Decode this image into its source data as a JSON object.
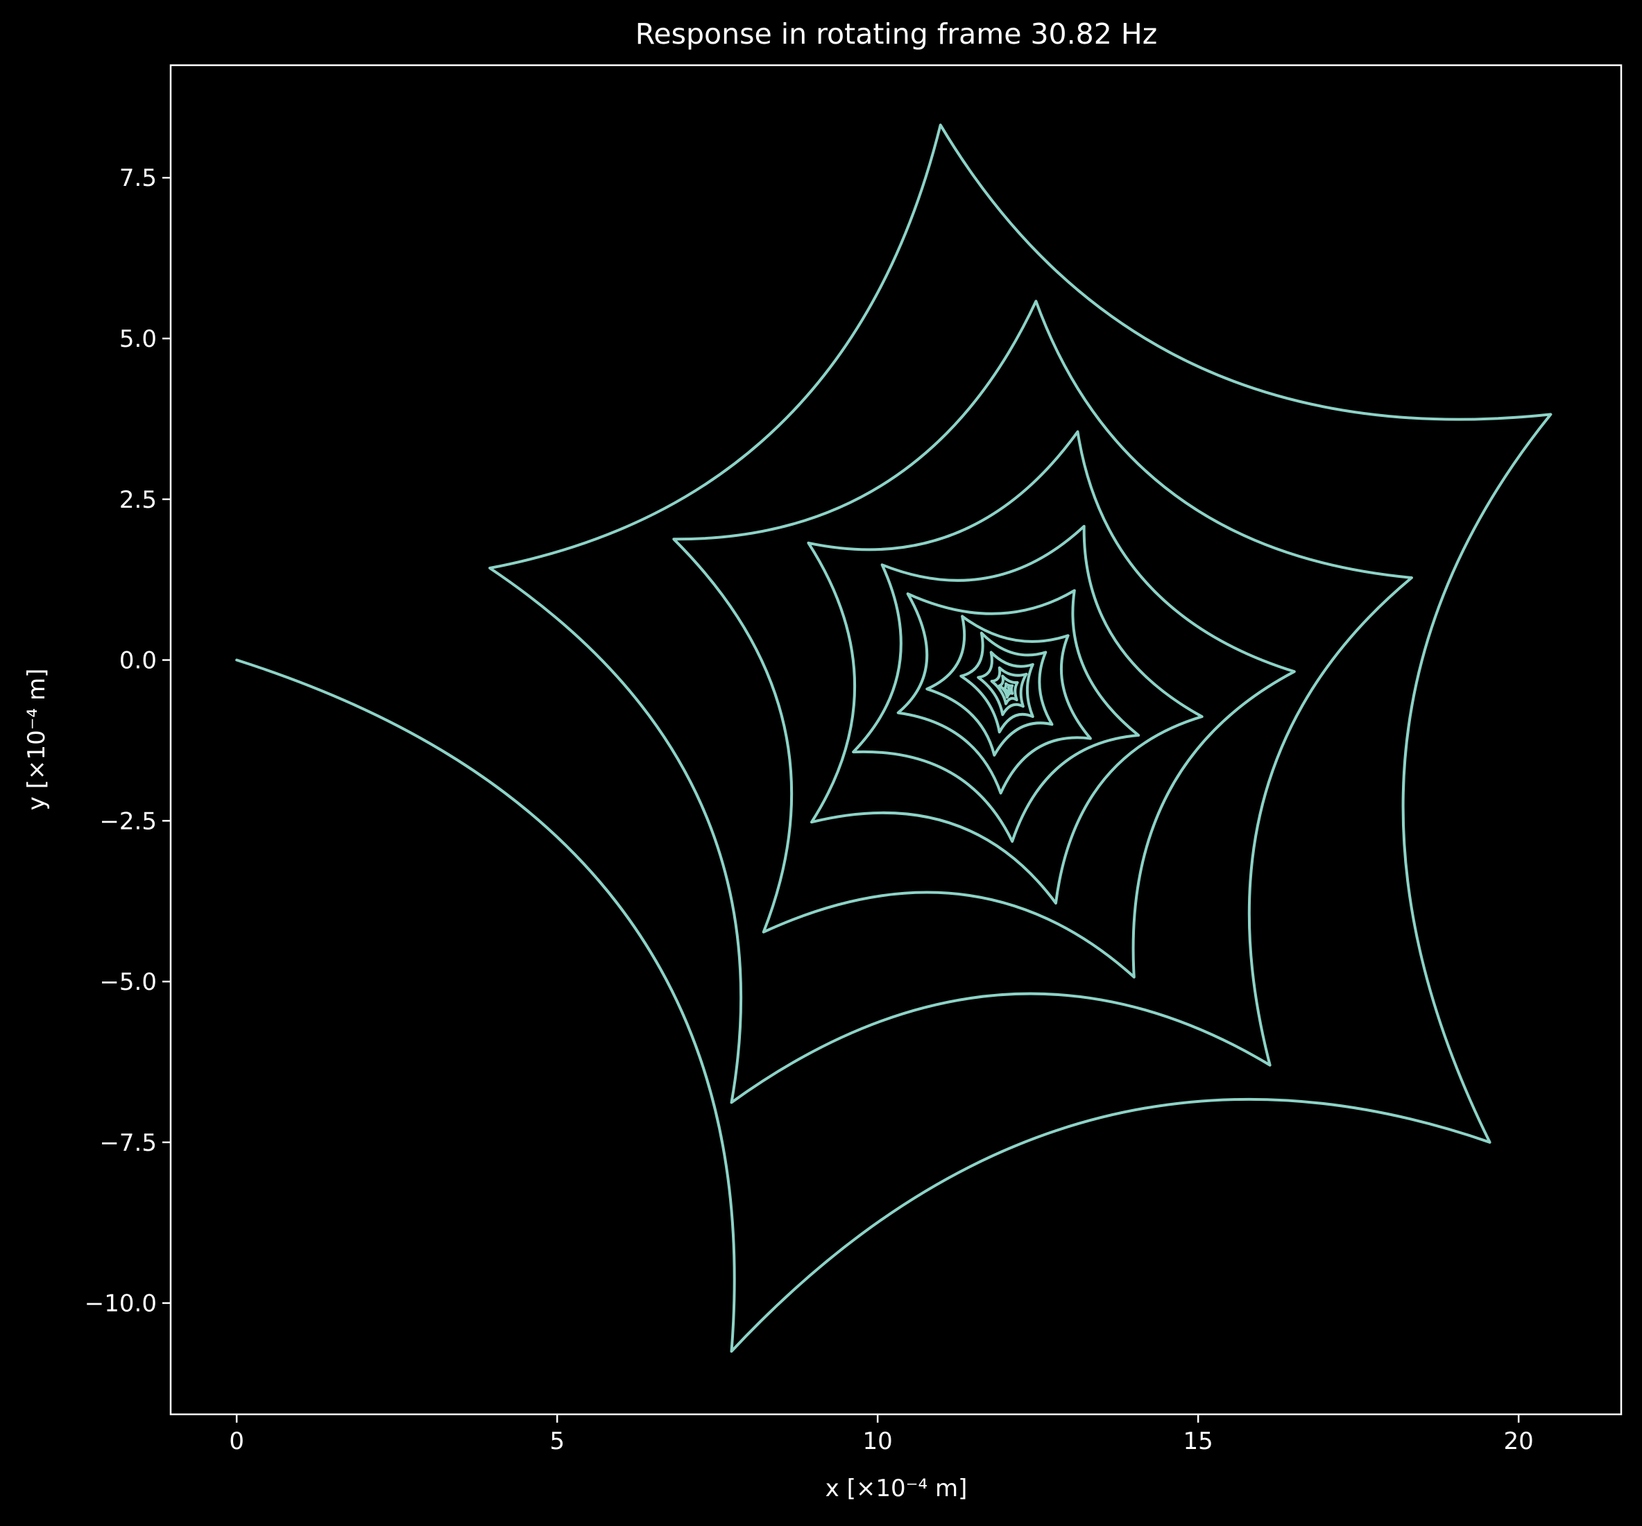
{
  "chart_data": {
    "type": "line",
    "title": "Response in rotating frame 30.82 Hz",
    "xlabel": "x [×10⁻⁴ m]",
    "ylabel": "y [×10⁻⁴ m]",
    "xlim": [
      -1.03,
      21.6
    ],
    "ylim": [
      -11.73,
      9.25
    ],
    "xticks": [
      0,
      5,
      10,
      15,
      20
    ],
    "xtick_labels": [
      "0",
      "5",
      "10",
      "15",
      "20"
    ],
    "yticks": [
      7.5,
      5.0,
      2.5,
      0.0,
      -2.5,
      -5.0,
      -7.5,
      -10.0
    ],
    "ytick_labels": [
      "7.5",
      "5.0",
      "2.5",
      "0.0",
      "−2.5",
      "−5.0",
      "−7.5",
      "−10.0"
    ],
    "grid": false,
    "background": "#000000",
    "foreground": "#ffffff",
    "series": [
      {
        "color": "#8dd3c7",
        "turning_points": [
          [
            0.0,
            0.0
          ],
          [
            7.72,
            -10.75
          ],
          [
            19.55,
            -7.5
          ],
          [
            20.5,
            3.82
          ],
          [
            10.98,
            8.32
          ],
          [
            3.95,
            1.43
          ],
          [
            7.72,
            -6.88
          ],
          [
            16.12,
            -6.3
          ],
          [
            18.33,
            1.28
          ],
          [
            12.47,
            5.58
          ],
          [
            6.82,
            1.88
          ],
          [
            8.22,
            -4.23
          ],
          [
            14.0,
            -4.93
          ],
          [
            16.5,
            -0.18
          ],
          [
            13.12,
            3.55
          ],
          [
            8.92,
            1.82
          ],
          [
            8.97,
            -2.52
          ],
          [
            12.78,
            -3.78
          ],
          [
            15.06,
            -0.88
          ],
          [
            13.22,
            2.08
          ],
          [
            10.07,
            1.48
          ],
          [
            9.62,
            -1.43
          ],
          [
            12.1,
            -2.82
          ],
          [
            14.07,
            -1.17
          ],
          [
            13.07,
            1.08
          ],
          [
            10.47,
            1.03
          ],
          [
            10.32,
            -0.82
          ],
          [
            11.92,
            -2.07
          ],
          [
            13.32,
            -1.22
          ],
          [
            12.97,
            0.38
          ],
          [
            11.32,
            0.68
          ],
          [
            10.77,
            -0.45
          ],
          [
            11.82,
            -1.48
          ],
          [
            12.72,
            -1.0
          ],
          [
            12.62,
            0.12
          ],
          [
            11.62,
            0.42
          ],
          [
            11.3,
            -0.25
          ],
          [
            11.9,
            -1.12
          ],
          [
            12.42,
            -0.88
          ],
          [
            12.42,
            -0.07
          ],
          [
            11.77,
            0.12
          ],
          [
            11.57,
            -0.27
          ],
          [
            11.95,
            -0.85
          ],
          [
            12.27,
            -0.72
          ],
          [
            12.32,
            -0.22
          ],
          [
            11.9,
            -0.12
          ],
          [
            11.78,
            -0.33
          ],
          [
            12.0,
            -0.68
          ],
          [
            12.17,
            -0.62
          ],
          [
            12.18,
            -0.35
          ],
          [
            11.95,
            -0.25
          ],
          [
            11.9,
            -0.4
          ],
          [
            12.02,
            -0.58
          ],
          [
            12.1,
            -0.52
          ],
          [
            12.1,
            -0.4
          ],
          [
            12.0,
            -0.37
          ],
          [
            11.97,
            -0.45
          ],
          [
            12.04,
            -0.52
          ],
          [
            12.06,
            -0.47
          ],
          [
            12.04,
            -0.43
          ]
        ]
      }
    ]
  }
}
